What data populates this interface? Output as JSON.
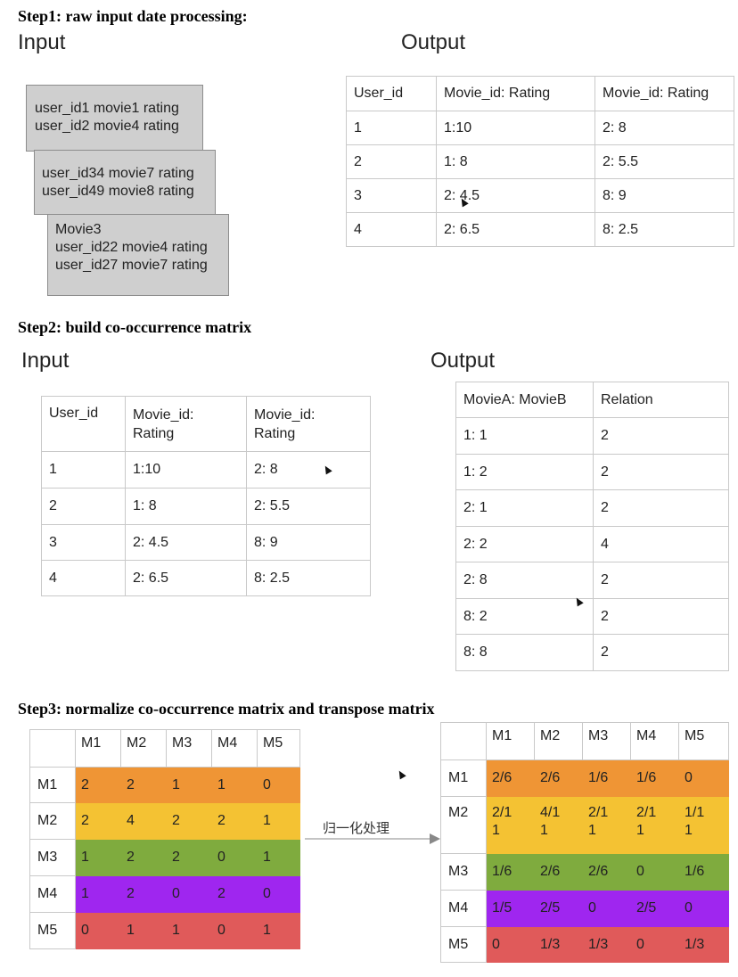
{
  "step1": {
    "title": "Step1: raw input date processing:",
    "input_label": "Input",
    "output_label": "Output",
    "boxes": [
      {
        "lines": [
          "user_id1 movie1 rating",
          "user_id2 movie4 rating"
        ]
      },
      {
        "lines": [
          "user_id34 movie7 rating",
          "user_id49 movie8 rating"
        ]
      },
      {
        "lines": [
          "Movie3",
          "user_id22 movie4 rating",
          "user_id27 movie7 rating"
        ]
      }
    ],
    "table": {
      "headers": [
        "User_id",
        "Movie_id: Rating",
        "Movie_id: Rating"
      ],
      "rows": [
        [
          "1",
          "1:10",
          "2: 8"
        ],
        [
          "2",
          "1: 8",
          "2: 5.5"
        ],
        [
          "3",
          "2: 4.5",
          "8: 9"
        ],
        [
          "4",
          "2: 6.5",
          "8: 2.5"
        ]
      ]
    }
  },
  "step2": {
    "title": "Step2: build co-occurrence matrix",
    "input_label": "Input",
    "output_label": "Output",
    "input_table": {
      "headers": [
        "User_id",
        "Movie_id:\nRating",
        "Movie_id:\nRating"
      ],
      "rows": [
        [
          "1",
          "1:10",
          "2: 8"
        ],
        [
          "2",
          "1: 8",
          "2: 5.5"
        ],
        [
          "3",
          "2: 4.5",
          "8: 9"
        ],
        [
          "4",
          "2: 6.5",
          "8: 2.5"
        ]
      ]
    },
    "output_table": {
      "headers": [
        "MovieA: MovieB",
        "Relation"
      ],
      "rows": [
        [
          "1: 1",
          "2"
        ],
        [
          "1: 2",
          "2"
        ],
        [
          "2: 1",
          "2"
        ],
        [
          "2: 2",
          "4"
        ],
        [
          "2: 8",
          "2"
        ],
        [
          "8: 2",
          "2"
        ],
        [
          "8: 8",
          "2"
        ]
      ]
    }
  },
  "step3": {
    "title": "Step3: normalize co-occurrence matrix and transpose matrix",
    "arrow_label": "归一化处理",
    "row_colors": [
      "#ef9535",
      "#f4c233",
      "#7fab3e",
      "#9f26ef",
      "#e05a5a"
    ],
    "left_matrix": {
      "col_headers": [
        "M1",
        "M2",
        "M3",
        "M4",
        "M5"
      ],
      "row_headers": [
        "M1",
        "M2",
        "M3",
        "M4",
        "M5"
      ],
      "rows": [
        [
          "2",
          "2",
          "1",
          "1",
          "0"
        ],
        [
          "2",
          "4",
          "2",
          "2",
          "1"
        ],
        [
          "1",
          "2",
          "2",
          "0",
          "1"
        ],
        [
          "1",
          "2",
          "0",
          "2",
          "0"
        ],
        [
          "0",
          "1",
          "1",
          "0",
          "1"
        ]
      ]
    },
    "right_matrix": {
      "col_headers": [
        "M1",
        "M2",
        "M3",
        "M4",
        "M5"
      ],
      "row_headers": [
        "M1",
        "M2",
        "M3",
        "M4",
        "M5"
      ],
      "rows": [
        [
          "2/6",
          "2/6",
          "1/6",
          "1/6",
          "0"
        ],
        [
          "2/1\n1",
          "4/1\n1",
          "2/1\n1",
          "2/1\n1",
          "1/1\n1"
        ],
        [
          "1/6",
          "2/6",
          "2/6",
          "0",
          "1/6"
        ],
        [
          "1/5",
          "2/5",
          "0",
          "2/5",
          "0"
        ],
        [
          "0",
          "1/3",
          "1/3",
          "0",
          "1/3"
        ]
      ]
    }
  }
}
